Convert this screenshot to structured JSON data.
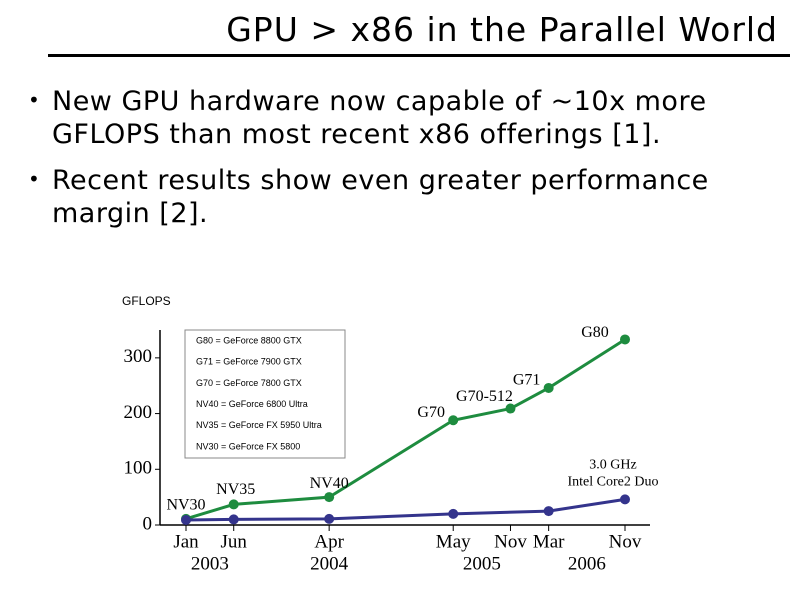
{
  "slide": {
    "title": "GPU > x86 in the Parallel World",
    "bullets": [
      "New GPU hardware now capable of ~10x more GFLOPS than most recent x86 offerings [1].",
      "Recent results show even greater performance margin [2]."
    ]
  },
  "chart_data": {
    "type": "line",
    "ylabel": "GFLOPS",
    "ylim": [
      0,
      350
    ],
    "yticks": [
      0,
      100,
      200,
      300
    ],
    "xticks": [
      {
        "value": "2003-01",
        "label": "Jan"
      },
      {
        "value": "2003-06",
        "label": "Jun"
      },
      {
        "value": "2004-04",
        "label": "Apr"
      },
      {
        "value": "2005-05",
        "label": "May"
      },
      {
        "value": "2005-11",
        "label": "Nov"
      },
      {
        "value": "2006-03",
        "label": "Mar"
      },
      {
        "value": "2006-11",
        "label": "Nov"
      }
    ],
    "year_labels": [
      "2003",
      "2004",
      "2005",
      "2006"
    ],
    "series": [
      {
        "color": "#1e8c3f",
        "x": [
          "2003-01",
          "2003-06",
          "2004-04",
          "2005-05",
          "2005-11",
          "2006-03",
          "2006-11"
        ],
        "values": [
          11,
          37,
          50,
          188,
          209,
          246,
          333
        ],
        "point_labels": [
          "NV30",
          "NV35",
          "NV40",
          "G70",
          "G70-512",
          "G71",
          "G80"
        ]
      },
      {
        "color": "#34348c",
        "x": [
          "2003-01",
          "2003-06",
          "2004-04",
          "2005-05",
          "2006-03",
          "2006-11"
        ],
        "values": [
          9,
          10,
          11,
          20,
          25,
          46
        ],
        "point_labels": [
          null,
          null,
          null,
          null,
          null,
          "3.0 GHz Intel Core2 Duo"
        ]
      }
    ],
    "legend_notes": [
      "G80 = GeForce 8800 GTX",
      "G71 = GeForce 7900 GTX",
      "G70 = GeForce 7800 GTX",
      "NV40 = GeForce 6800 Ultra",
      "NV35 = GeForce FX 5950 Ultra",
      "NV30 = GeForce FX 5800"
    ]
  }
}
